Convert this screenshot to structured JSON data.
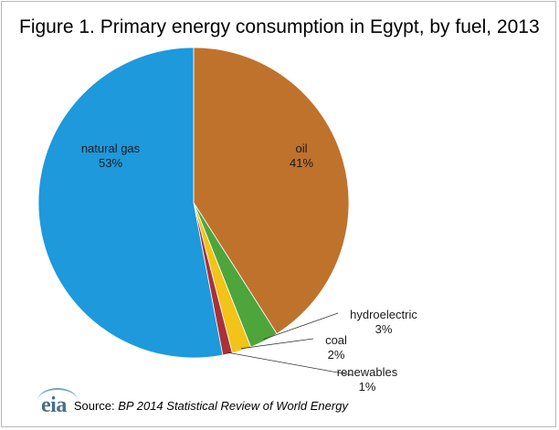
{
  "title": "Figure 1. Primary energy consumption in Egypt, by fuel, 2013",
  "source": {
    "prefix": "Source:",
    "work": "BP 2014  Statistical Review  of World Energy"
  },
  "logo_text": "eia",
  "chart_data": {
    "type": "pie",
    "title": "Figure 1. Primary energy consumption in Egypt, by fuel, 2013",
    "slices": [
      {
        "label": "oil",
        "value": 41,
        "pct_label": "41%",
        "color": "#bf722c"
      },
      {
        "label": "hydroelectric",
        "value": 3,
        "pct_label": "3%",
        "color": "#4ea53c"
      },
      {
        "label": "coal",
        "value": 2,
        "pct_label": "2%",
        "color": "#f2c318"
      },
      {
        "label": "renewables",
        "value": 1,
        "pct_label": "1%",
        "color": "#a8313b"
      },
      {
        "label": "natural gas",
        "value": 53,
        "pct_label": "53%",
        "color": "#1d99dc"
      }
    ],
    "start_angle_deg": 0,
    "direction": "clockwise"
  }
}
